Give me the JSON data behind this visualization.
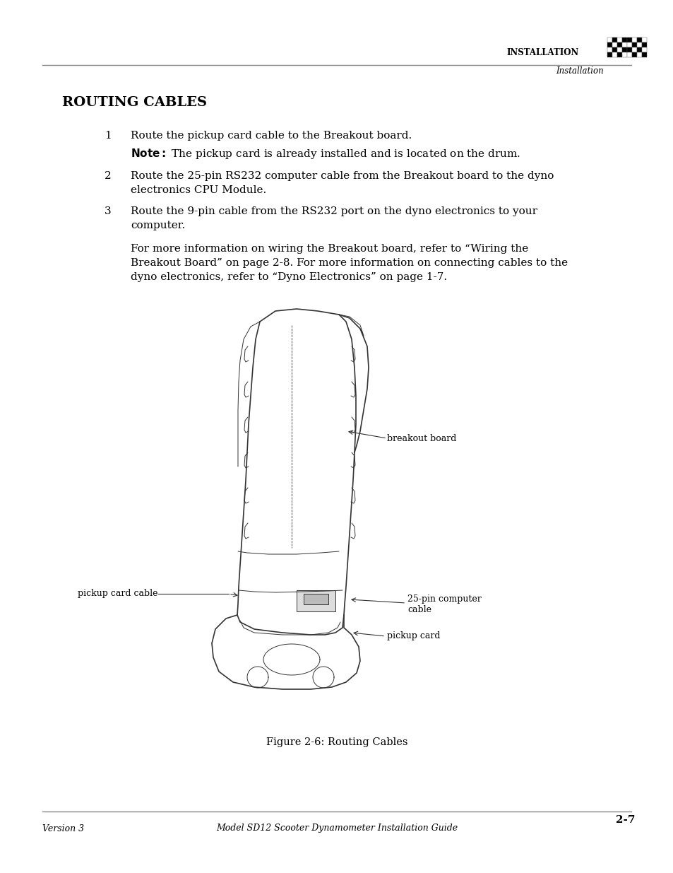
{
  "bg_color": "#ffffff",
  "header_line_color": "#888888",
  "header_text": "INSTALLATION",
  "header_subtext": "Installation",
  "section_title": "Routing Cables",
  "items": [
    {
      "num": "1",
      "text": "Route the pickup card cable to the Breakout board.",
      "note": "Note: The pickup card is already installed and is located on the drum."
    },
    {
      "num": "2",
      "text": "Route the 25-pin RS232 computer cable from the Breakout board to the dyno\nelectronics CPU Module."
    },
    {
      "num": "3",
      "text": "Route the 9-pin cable from the RS232 port on the dyno electronics to your\ncomputer."
    }
  ],
  "extra_para": "For more information on wiring the Breakout board, refer to “Wiring the\nBreakout Board” on page 2-8. For more information on connecting cables to the\ndyno electronics, refer to “Dyno Electronics” on page 1-7.",
  "figure_caption": "Figure 2-6: Routing Cables",
  "footer_left": "Version 3",
  "footer_center": "Model SD12 Scooter Dynamometer Installation Guide",
  "footer_right": "2-7",
  "footer_line_color": "#888888",
  "text_color": "#000000",
  "gray_color": "#555555"
}
